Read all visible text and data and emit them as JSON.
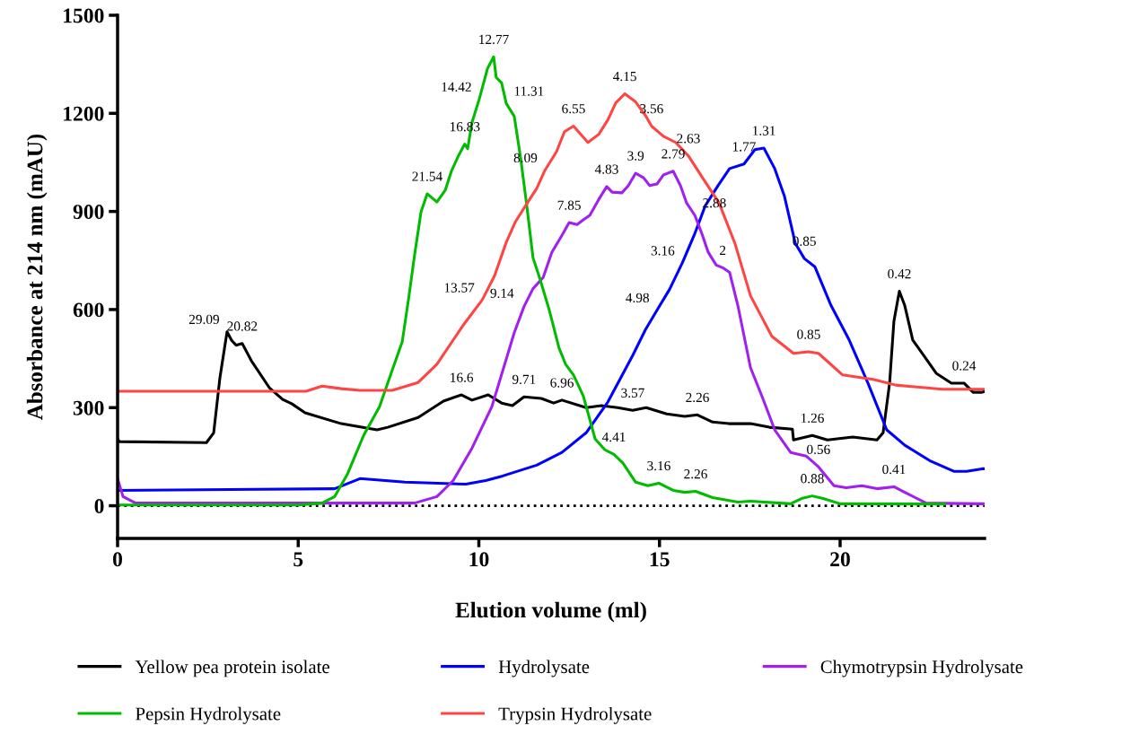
{
  "chart_data": {
    "type": "line",
    "xlabel": "Elution volume (ml)",
    "ylabel": "Absorbance at 214 nm (mAU)",
    "xlim": [
      0,
      24
    ],
    "ylim": [
      -100,
      1500
    ],
    "xticks": [
      0,
      5,
      10,
      15,
      20
    ],
    "yticks": [
      0,
      300,
      600,
      900,
      1200,
      1500
    ],
    "grid": false,
    "legend": "bottom",
    "marker": "none",
    "line_style": "solid",
    "ref_lines": [
      {
        "axis": "y",
        "value": 0,
        "color": "#000000",
        "line_style": "dotted"
      }
    ],
    "series": [
      {
        "name": "Yellow pea protein isolate",
        "color": "#000000",
        "x": [
          0,
          0.05,
          2.46,
          2.66,
          2.83,
          3.03,
          3.16,
          3.28,
          3.45,
          3.7,
          4.2,
          4.57,
          4.82,
          5.19,
          6.19,
          7.18,
          7.48,
          8.32,
          9.02,
          9.52,
          9.81,
          10.26,
          10.63,
          10.93,
          11.25,
          11.73,
          12.07,
          12.3,
          12.97,
          13.39,
          13.84,
          14.26,
          14.63,
          15.2,
          15.7,
          16.05,
          16.47,
          16.92,
          17.52,
          18.04,
          18.68,
          18.71,
          19.23,
          19.65,
          20.35,
          21.02,
          21.19,
          21.37,
          21.49,
          21.64,
          21.79,
          22.01,
          22.31,
          22.66,
          23.08,
          23.43,
          23.68,
          23.93,
          24
        ],
        "values": [
          204,
          196,
          193,
          223,
          389,
          532,
          505,
          491,
          496,
          444,
          361,
          325,
          312,
          284,
          251,
          232,
          240,
          270,
          320,
          339,
          323,
          339,
          314,
          306,
          333,
          328,
          314,
          323,
          300,
          306,
          300,
          292,
          300,
          281,
          273,
          278,
          256,
          251,
          251,
          240,
          234,
          201,
          215,
          201,
          210,
          201,
          223,
          375,
          565,
          656,
          612,
          507,
          460,
          405,
          375,
          375,
          347,
          347,
          350
        ]
      },
      {
        "name": "Hydrolysate",
        "color": "#0000ff",
        "x": [
          0,
          6.01,
          6.71,
          7.95,
          9.64,
          10.19,
          10.66,
          11.6,
          12.3,
          12.97,
          13.57,
          14.26,
          14.61,
          14.93,
          15.28,
          15.63,
          15.98,
          16.27,
          16.62,
          16.94,
          17.34,
          17.64,
          17.89,
          18.19,
          18.46,
          18.76,
          19.01,
          19.3,
          19.75,
          20.25,
          20.77,
          21.29,
          21.79,
          22.48,
          23.16,
          23.5,
          23.93,
          24
        ],
        "values": [
          47,
          52,
          83,
          72,
          66,
          77,
          91,
          124,
          163,
          223,
          317,
          460,
          538,
          598,
          662,
          742,
          833,
          918,
          979,
          1031,
          1045,
          1089,
          1094,
          1031,
          946,
          802,
          756,
          731,
          612,
          507,
          375,
          232,
          185,
          138,
          105,
          105,
          113,
          113
        ]
      },
      {
        "name": "Chymotrypsin Hydrolysate",
        "color": "#a020f0",
        "x": [
          0,
          0.15,
          0.5,
          8.22,
          8.84,
          9.29,
          9.81,
          10.36,
          10.98,
          11.25,
          11.5,
          11.78,
          12.02,
          12.3,
          12.5,
          12.72,
          12.89,
          13.07,
          13.32,
          13.54,
          13.69,
          13.96,
          14.14,
          14.34,
          14.56,
          14.73,
          14.93,
          15.11,
          15.38,
          15.58,
          15.75,
          15.98,
          16.17,
          16.35,
          16.57,
          16.75,
          16.94,
          17.17,
          17.52,
          17.86,
          18.19,
          18.63,
          19.06,
          19.4,
          19.83,
          20.17,
          20.6,
          21.02,
          21.49,
          21.79,
          22.38,
          23.93,
          24
        ],
        "values": [
          83,
          28,
          8,
          8,
          28,
          77,
          176,
          303,
          529,
          609,
          664,
          698,
          775,
          827,
          866,
          860,
          874,
          888,
          937,
          976,
          959,
          957,
          979,
          1017,
          1003,
          979,
          984,
          1012,
          1023,
          979,
          926,
          888,
          833,
          775,
          736,
          728,
          714,
          612,
          422,
          328,
          232,
          163,
          152,
          119,
          61,
          55,
          61,
          52,
          58,
          41,
          8,
          6,
          6
        ]
      },
      {
        "name": "Pepsin Hydrolysate",
        "color": "#00bb00",
        "x": [
          0,
          5,
          5.66,
          6.01,
          6.36,
          6.81,
          7.25,
          7.6,
          7.88,
          8.05,
          8.22,
          8.4,
          8.57,
          8.84,
          9.07,
          9.24,
          9.42,
          9.61,
          9.69,
          9.81,
          10.01,
          10.24,
          10.41,
          10.48,
          10.63,
          10.76,
          10.98,
          11.16,
          11.33,
          11.5,
          11.68,
          11.95,
          12.22,
          12.4,
          12.62,
          12.89,
          13.22,
          13.49,
          13.74,
          13.99,
          14.34,
          14.68,
          14.98,
          15.38,
          15.7,
          16,
          16.47,
          17.17,
          17.52,
          18.63,
          18.93,
          19.23,
          19.53,
          20,
          22.9
        ],
        "values": [
          2,
          2,
          8,
          28,
          96,
          215,
          303,
          414,
          502,
          629,
          766,
          899,
          954,
          929,
          965,
          1023,
          1067,
          1106,
          1092,
          1172,
          1243,
          1337,
          1373,
          1310,
          1293,
          1230,
          1191,
          1061,
          915,
          758,
          698,
          598,
          482,
          433,
          400,
          336,
          204,
          171,
          157,
          130,
          72,
          61,
          69,
          47,
          41,
          44,
          25,
          11,
          14,
          6,
          22,
          30,
          22,
          6,
          5
        ]
      },
      {
        "name": "Trypsin Hydrolysate",
        "color": "#ff4444",
        "x": [
          0,
          5.22,
          5.66,
          6.19,
          6.71,
          7.6,
          8.32,
          8.84,
          9.56,
          10.09,
          10.43,
          10.76,
          11.01,
          11.33,
          11.6,
          11.83,
          12.15,
          12.37,
          12.62,
          13.02,
          13.32,
          13.57,
          13.79,
          14.04,
          14.34,
          14.61,
          14.78,
          15.11,
          15.45,
          15.8,
          16.22,
          16.65,
          17.09,
          17.52,
          18.11,
          18.71,
          19.13,
          19.4,
          20.07,
          20.94,
          21.54,
          22.83,
          23.93,
          24
        ],
        "values": [
          350,
          350,
          366,
          358,
          353,
          353,
          377,
          433,
          551,
          629,
          702,
          806,
          868,
          924,
          970,
          1026,
          1083,
          1144,
          1161,
          1111,
          1136,
          1180,
          1232,
          1260,
          1235,
          1194,
          1161,
          1130,
          1111,
          1070,
          998,
          926,
          802,
          642,
          518,
          466,
          471,
          466,
          400,
          386,
          369,
          356,
          356,
          356
        ]
      }
    ],
    "annotations": [
      {
        "text": "29.09",
        "x": 3.03,
        "y": 532
      },
      {
        "text": "20.82",
        "x": 3.45,
        "y": 496
      },
      {
        "text": "16.6",
        "x": 9.52,
        "y": 339
      },
      {
        "text": "9.71",
        "x": 11.25,
        "y": 333
      },
      {
        "text": "6.96",
        "x": 12.3,
        "y": 323
      },
      {
        "text": "3.57",
        "x": 14.26,
        "y": 292
      },
      {
        "text": "2.26",
        "x": 16.05,
        "y": 278
      },
      {
        "text": "1.26",
        "x": 19.23,
        "y": 215
      },
      {
        "text": "0.42",
        "x": 21.64,
        "y": 656
      },
      {
        "text": "0.24",
        "x": 23.43,
        "y": 375
      },
      {
        "text": "12.77",
        "x": 10.41,
        "y": 1373
      },
      {
        "text": "14.42",
        "x": 10.01,
        "y": 1243
      },
      {
        "text": "11.31",
        "x": 10.76,
        "y": 1230
      },
      {
        "text": "16.83",
        "x": 9.61,
        "y": 1106
      },
      {
        "text": "21.54",
        "x": 8.57,
        "y": 954
      },
      {
        "text": "4.41",
        "x": 13.74,
        "y": 157
      },
      {
        "text": "3.16",
        "x": 14.98,
        "y": 69
      },
      {
        "text": "2.26",
        "x": 16.0,
        "y": 44
      },
      {
        "text": "0.88",
        "x": 19.23,
        "y": 30
      },
      {
        "text": "6.55",
        "x": 12.62,
        "y": 1161
      },
      {
        "text": "4.15",
        "x": 14.04,
        "y": 1260
      },
      {
        "text": "3.56",
        "x": 14.78,
        "y": 1161
      },
      {
        "text": "2.63",
        "x": 15.8,
        "y": 1070
      },
      {
        "text": "8.09",
        "x": 11.83,
        "y": 1026
      },
      {
        "text": "13.57",
        "x": 10.09,
        "y": 629
      },
      {
        "text": "0.85",
        "x": 19.13,
        "y": 471
      },
      {
        "text": "4.83",
        "x": 13.54,
        "y": 976
      },
      {
        "text": "3.9",
        "x": 14.34,
        "y": 1017
      },
      {
        "text": "2.79",
        "x": 15.38,
        "y": 1023
      },
      {
        "text": "7.85",
        "x": 12.5,
        "y": 866
      },
      {
        "text": "9.14",
        "x": 11.18,
        "y": 612
      },
      {
        "text": "2.88",
        "x": 15.98,
        "y": 888
      },
      {
        "text": "2",
        "x": 16.75,
        "y": 728
      },
      {
        "text": "0.56",
        "x": 19.4,
        "y": 119
      },
      {
        "text": "0.41",
        "x": 21.49,
        "y": 58
      },
      {
        "text": "1.31",
        "x": 17.89,
        "y": 1094
      },
      {
        "text": "1.77",
        "x": 17.34,
        "y": 1045
      },
      {
        "text": "3.16",
        "x": 15.63,
        "y": 742
      },
      {
        "text": "4.98",
        "x": 14.93,
        "y": 598
      },
      {
        "text": "0.85",
        "x": 19.01,
        "y": 756
      }
    ]
  }
}
